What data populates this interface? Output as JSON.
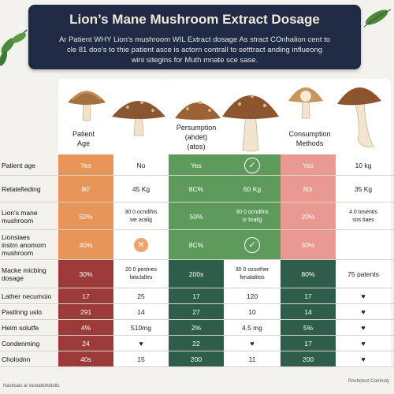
{
  "header": {
    "title": "Lion’s Mane Mushroom Extract Dosage",
    "subtitle_line1": "Ar Patient WHY Lion’s mushroom WIL Extract dosage As stract COnhalion cent to",
    "subtitle_line2": "cle 81 doo’s to thie patient asce is actorn contrall to setttract anding influeong",
    "subtitle_line3": "wini sitegins for Muth mnate sce sase."
  },
  "columns": [
    {
      "title_lines": [
        "Patient",
        "Age"
      ]
    },
    {
      "title_lines": [
        "Persumption",
        "(ahdet)",
        "(atos)"
      ]
    },
    {
      "title_lines": [
        "Consumption",
        "Methods"
      ]
    }
  ],
  "rows": [
    {
      "label": "Patient age",
      "cells": [
        "Yes",
        "No",
        "Yes",
        "check-icon",
        "Yes",
        "10 kg"
      ]
    },
    {
      "label": "Relatefieding",
      "cells": [
        "80’",
        "45 Kg",
        "8C%",
        "60 Kg",
        "80r",
        "35 Kg"
      ]
    },
    {
      "label": "Lion's mane\nmushroom",
      "cells": [
        "50%",
        "30 0 ocndihis\nwe aralig",
        "50%",
        "30 0 ocndihis\nsr bralig",
        "20%",
        "4.0 tosentis\nsos tiaes"
      ]
    },
    {
      "label": "Lionsiaes\ninstrn anomom\nmushroom",
      "cells": [
        "40%",
        "x-icon",
        "8C%",
        "check-icon",
        "50%",
        ""
      ]
    },
    {
      "label": "Macke micbing\ndosage",
      "cells": [
        "30%",
        "20 0 pestnes\nfaticlalles",
        "200s",
        "30 0 ozsother\nfenalalitos",
        "80%",
        "75 patents"
      ]
    },
    {
      "label": "Lather necumoio",
      "cells": [
        "17",
        "25",
        "17",
        "120",
        "17",
        "heart-icon"
      ]
    },
    {
      "label": "Pastlnng uslo",
      "cells": [
        "291",
        "14",
        "27",
        "10",
        "14",
        "heart-icon"
      ]
    },
    {
      "label": "Heim solutfe",
      "cells": [
        "4%",
        "510mg",
        "2%",
        "4.5 mg",
        "5%",
        "heart-icon"
      ]
    },
    {
      "label": "Condenming",
      "cells": [
        "24",
        "heart-icon",
        "22",
        "heart-icon",
        "17",
        "heart-icon"
      ]
    },
    {
      "label": "Cholodnn",
      "cells": [
        "40s",
        "15",
        "200",
        "11",
        "200",
        "heart-icon"
      ]
    }
  ],
  "footer": {
    "left": "Hastlcals al slcelaltofedolls",
    "right": "Rnsttclsrd Cotrinsty"
  },
  "colors": {
    "banner": "#1f2a44",
    "orange": "#e8955a",
    "green": "#5e9a5b",
    "salmon": "#e9998f",
    "dark_red": "#9c3a3a",
    "dark_green": "#2e5d4b"
  }
}
